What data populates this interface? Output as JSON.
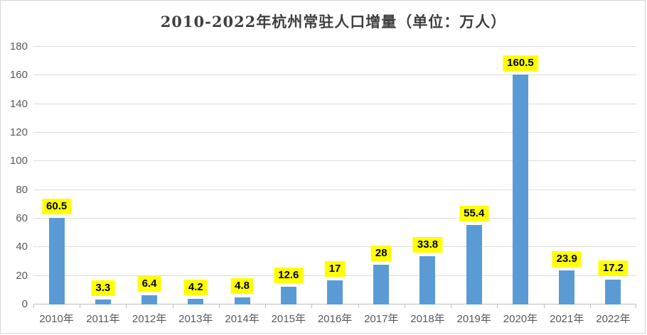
{
  "title": "2010-2022年杭州常驻人口增量（单位：万人）",
  "chart_data": {
    "type": "bar",
    "title": "2010-2022年杭州常驻人口增量（单位：万人）",
    "categories": [
      "2010年",
      "2011年",
      "2012年",
      "2013年",
      "2014年",
      "2015年",
      "2016年",
      "2017年",
      "2018年",
      "2019年",
      "2020年",
      "2021年",
      "2022年"
    ],
    "values": [
      60.5,
      3.3,
      6.4,
      4.2,
      4.8,
      12.6,
      17,
      28,
      33.8,
      55.4,
      160.5,
      23.9,
      17.2
    ],
    "value_labels": [
      "60.5",
      "3.3",
      "6.4",
      "4.2",
      "4.8",
      "12.6",
      "17",
      "28",
      "33.8",
      "55.4",
      "160.5",
      "23.9",
      "17.2"
    ],
    "xlabel": "",
    "ylabel": "",
    "ylim": [
      0,
      180
    ],
    "yticks": [
      0,
      20,
      40,
      60,
      80,
      100,
      120,
      140,
      160,
      180
    ],
    "grid": true,
    "legend": "none",
    "bar_color": "#5B9BD5",
    "label_background": "#FFFF00",
    "label_text_color": "#000000",
    "axis_text_color": "#595959"
  }
}
